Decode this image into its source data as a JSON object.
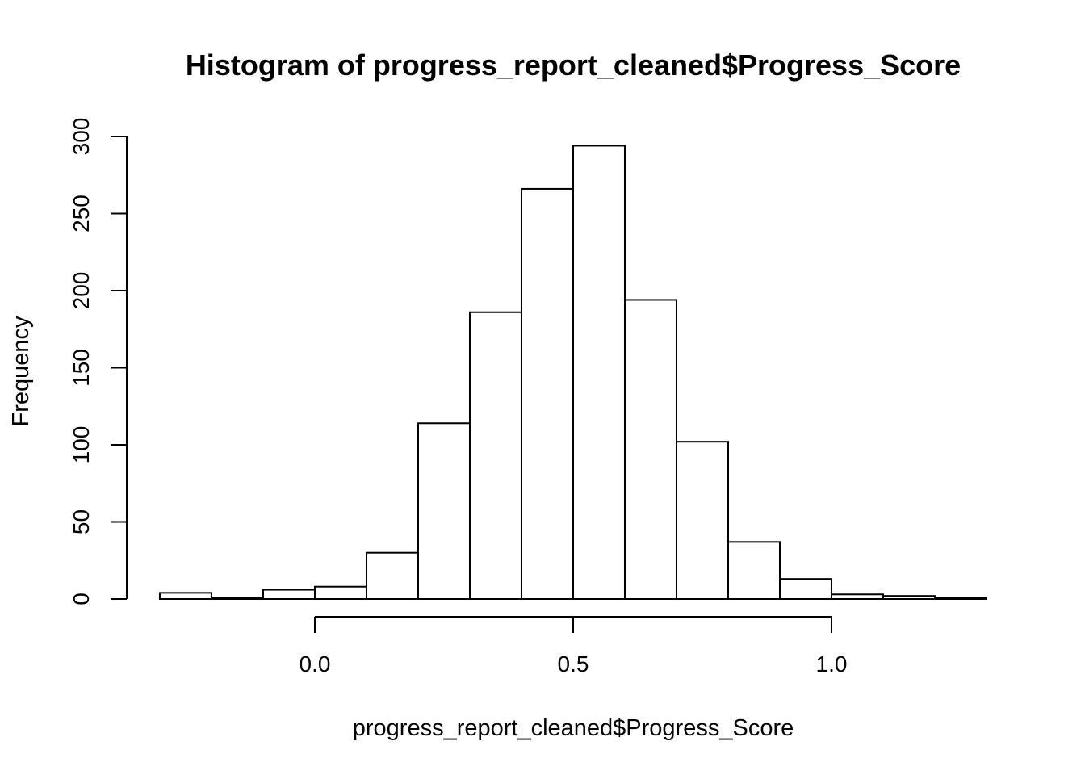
{
  "chart_data": {
    "type": "bar",
    "title": "Histogram of progress_report_cleaned$Progress_Score",
    "xlabel": "progress_report_cleaned$Progress_Score",
    "ylabel": "Frequency",
    "bin_edges": [
      -0.3,
      -0.2,
      -0.1,
      0.0,
      0.1,
      0.2,
      0.3,
      0.4,
      0.5,
      0.6,
      0.7,
      0.8,
      0.9,
      1.0,
      1.1,
      1.2,
      1.3
    ],
    "values": [
      4,
      1,
      6,
      8,
      30,
      114,
      186,
      266,
      294,
      194,
      102,
      37,
      13,
      3,
      2,
      1
    ],
    "x_ticks": [
      "0.0",
      "0.5",
      "1.0"
    ],
    "x_tick_values": [
      0.0,
      0.5,
      1.0
    ],
    "y_ticks": [
      "0",
      "50",
      "100",
      "150",
      "200",
      "250",
      "300"
    ],
    "y_tick_values": [
      0,
      50,
      100,
      150,
      200,
      250,
      300
    ],
    "xlim": [
      -0.3,
      1.3
    ],
    "ylim": [
      0,
      300
    ],
    "grid": false,
    "legend": "none"
  }
}
